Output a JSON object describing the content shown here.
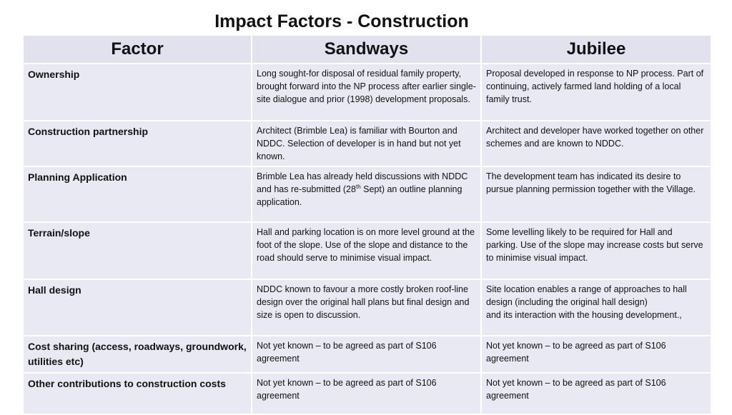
{
  "title": "Impact Factors - Construction",
  "table": {
    "header": [
      "Factor",
      "Sandways",
      "Jubilee"
    ],
    "rows": [
      [
        "Ownership",
        "Long sought-for disposal of residual family property, brought forward into the NP process after earlier single-site dialogue and prior (1998) development proposals.",
        "Proposal developed in response to NP process. Part of continuing, actively farmed land holding of a local family trust."
      ],
      [
        "Construction partnership",
        "Architect (Brimble Lea) is familiar with Bourton and NDDC. Selection of developer is in hand but not yet known.",
        "Architect and developer have worked together on other schemes and are known to NDDC."
      ],
      [
        "Planning Application",
        [
          "Brimble Lea has already held discussions with NDDC and has re-submitted (28",
          "th",
          " Sept) an outline planning application."
        ],
        "The development team has indicated its desire to pursue planning permission together with the Village."
      ],
      [
        "Terrain/slope",
        "Hall and parking location is on more level ground at the foot of the slope. Use of the slope and distance to the road should serve to minimise visual impact.",
        "Some levelling likely to be required for Hall and parking. Use of the slope may increase costs but serve to minimise visual impact."
      ],
      [
        "Hall design",
        "NDDC known to favour a more costly broken roof-line design over the original hall plans but final design and size is open to discussion.",
        "Site location enables a range of approaches to hall design (including the original hall design)\nand its interaction with the housing development.,"
      ],
      [
        "Cost sharing (access, roadways, groundwork, utilities etc)",
        "Not yet known – to be agreed as part of S106 agreement",
        "Not yet known – to be agreed as part of S106 agreement"
      ],
      [
        "Other contributions to construction costs",
        "Not yet known – to be agreed as part of S106 agreement",
        "Not yet known – to be agreed as part of S106 agreement"
      ]
    ]
  }
}
